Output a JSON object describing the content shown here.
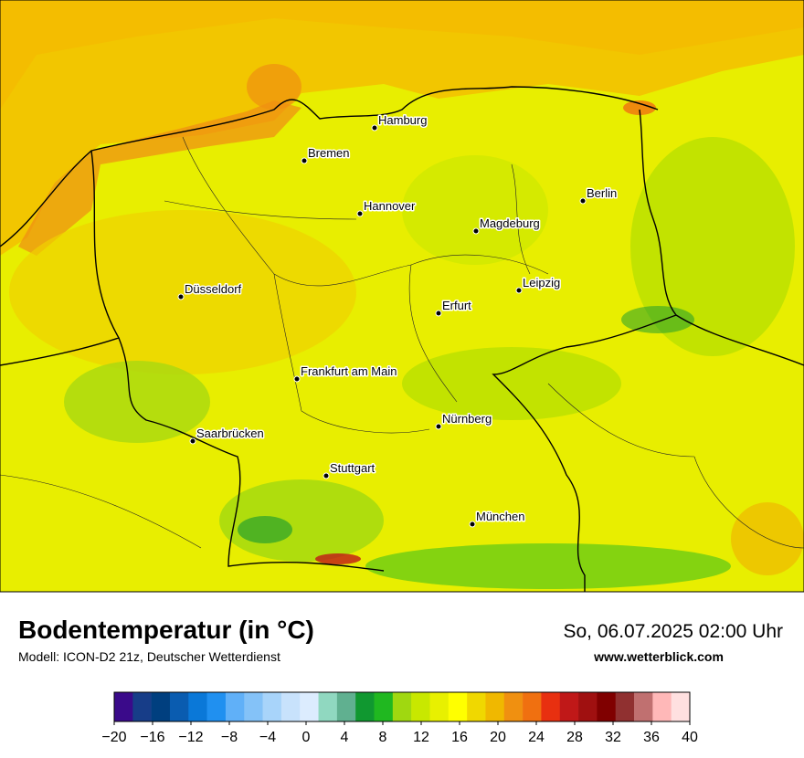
{
  "map": {
    "cities": [
      "Hamburg",
      "Bremen",
      "Hannover",
      "Berlin",
      "Magdeburg",
      "Düsseldorf",
      "Leipzig",
      "Erfurt",
      "Frankfurt am Main",
      "Nürnberg",
      "Saarbrücken",
      "Stuttgart",
      "München"
    ]
  },
  "footer": {
    "title": "Bodentemperatur (in °C)",
    "model": "Modell: ICON-D2 21z, Deutscher Wetterdienst",
    "datetime": "So, 06.07.2025 02:00 Uhr",
    "website": "www.wetterblick.com"
  },
  "colorbar": {
    "range": [
      -20,
      40
    ],
    "colors": [
      "#3a0a8a",
      "#173d88",
      "#003f7f",
      "#0a5cb0",
      "#0a78d8",
      "#2090f0",
      "#60b0f8",
      "#84c2f8",
      "#a8d4fa",
      "#c8e2fc",
      "#dcecfe",
      "#90d8c0",
      "#60b090",
      "#109830",
      "#20b820",
      "#a0d810",
      "#c8e800",
      "#e8f000",
      "#ffff00",
      "#f0d800",
      "#f0b800",
      "#f09010",
      "#f07010",
      "#e83010",
      "#c01818",
      "#a01010",
      "#800000",
      "#903030",
      "#c07070",
      "#ffb8b8",
      "#ffe0e0"
    ],
    "ticks": [
      {
        "value": -20,
        "label": "−20"
      },
      {
        "value": -16,
        "label": "−16"
      },
      {
        "value": -12,
        "label": "−12"
      },
      {
        "value": -8,
        "label": "−8"
      },
      {
        "value": -4,
        "label": "−4"
      },
      0,
      4,
      8,
      12,
      16,
      20,
      24,
      28,
      32,
      36,
      40
    ]
  }
}
